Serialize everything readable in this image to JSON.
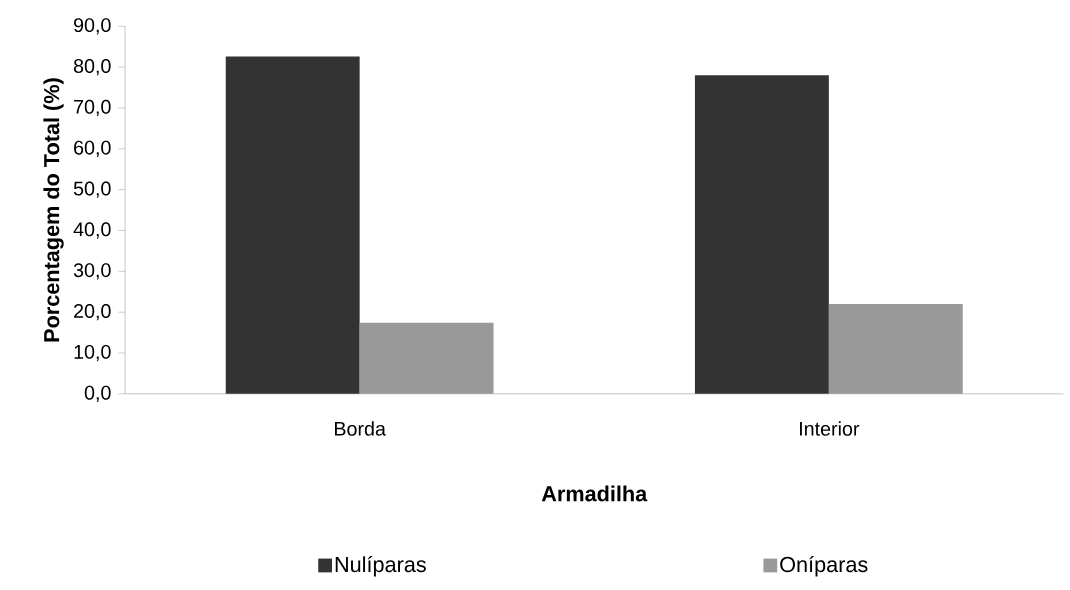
{
  "chart_data": {
    "type": "bar",
    "xlabel": "Armadilha",
    "ylabel": "Porcentagem do Total (%)",
    "categories": [
      "Borda",
      "Interior"
    ],
    "series": [
      {
        "name": "Nulíparas",
        "color": "#333333",
        "values": [
          82.6,
          78.0
        ]
      },
      {
        "name": "Oníparas",
        "color": "#999999",
        "values": [
          17.4,
          22.0
        ]
      }
    ],
    "ylim": [
      0,
      90
    ],
    "yticks": [
      {
        "value": 0,
        "label": "0,0"
      },
      {
        "value": 10,
        "label": "10,0"
      },
      {
        "value": 20,
        "label": "20,0"
      },
      {
        "value": 30,
        "label": "30,0"
      },
      {
        "value": 40,
        "label": "40,0"
      },
      {
        "value": 50,
        "label": "50,0"
      },
      {
        "value": 60,
        "label": "60,0"
      },
      {
        "value": 70,
        "label": "70,0"
      },
      {
        "value": 80,
        "label": "80,0"
      },
      {
        "value": 90,
        "label": "90,0"
      }
    ],
    "grid": false,
    "legend": "bottom"
  }
}
